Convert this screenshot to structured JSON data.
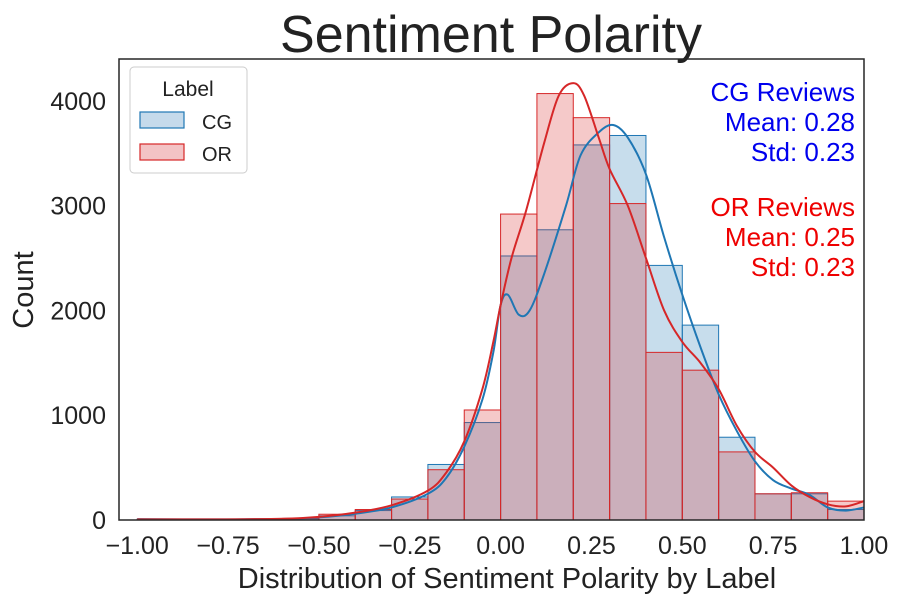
{
  "chart_data": {
    "type": "histogram",
    "title": "Sentiment Polarity",
    "xlabel": "Distribution of Sentiment Polarity by Label",
    "ylabel": "Count",
    "xlim": [
      -1.05,
      1.0
    ],
    "ylim": [
      0,
      4400
    ],
    "x_ticks": [
      -1.0,
      -0.75,
      -0.5,
      -0.25,
      0.0,
      0.25,
      0.5,
      0.75,
      1.0
    ],
    "x_tick_labels": [
      "−1.00",
      "−0.75",
      "−0.50",
      "−0.25",
      "0.00",
      "0.25",
      "0.50",
      "0.75",
      "1.00"
    ],
    "y_ticks": [
      0,
      1000,
      2000,
      3000,
      4000
    ],
    "y_tick_labels": [
      "0",
      "1000",
      "2000",
      "3000",
      "4000"
    ],
    "grid": false,
    "legend": {
      "title": "Label",
      "placement": "top-left",
      "entries": [
        "CG",
        "OR"
      ]
    },
    "bin_edges": [
      -1.0,
      -0.9,
      -0.8,
      -0.7,
      -0.6,
      -0.5,
      -0.4,
      -0.3,
      -0.2,
      -0.1,
      0.0,
      0.1,
      0.2,
      0.3,
      0.4,
      0.5,
      0.6,
      0.7,
      0.8,
      0.9,
      1.0
    ],
    "series": [
      {
        "name": "CG",
        "color": "#1f77b4",
        "fill": "#c5daeb",
        "counts": [
          8,
          4,
          6,
          8,
          12,
          40,
          90,
          220,
          530,
          930,
          2520,
          2770,
          3580,
          3670,
          2430,
          1860,
          790,
          250,
          250,
          100
        ],
        "kde": [
          [
            -1.0,
            8
          ],
          [
            -0.8,
            6
          ],
          [
            -0.6,
            10
          ],
          [
            -0.5,
            25
          ],
          [
            -0.4,
            60
          ],
          [
            -0.3,
            120
          ],
          [
            -0.2,
            250
          ],
          [
            -0.15,
            400
          ],
          [
            -0.1,
            700
          ],
          [
            -0.05,
            1150
          ],
          [
            -0.02,
            1600
          ],
          [
            0.0,
            2050
          ],
          [
            0.02,
            2150
          ],
          [
            0.05,
            1960
          ],
          [
            0.08,
            2000
          ],
          [
            0.12,
            2350
          ],
          [
            0.18,
            3000
          ],
          [
            0.22,
            3480
          ],
          [
            0.27,
            3700
          ],
          [
            0.31,
            3770
          ],
          [
            0.35,
            3650
          ],
          [
            0.4,
            3300
          ],
          [
            0.45,
            2700
          ],
          [
            0.5,
            2150
          ],
          [
            0.55,
            1650
          ],
          [
            0.6,
            1200
          ],
          [
            0.65,
            850
          ],
          [
            0.7,
            560
          ],
          [
            0.75,
            380
          ],
          [
            0.8,
            300
          ],
          [
            0.85,
            240
          ],
          [
            0.9,
            120
          ],
          [
            0.95,
            90
          ],
          [
            1.0,
            120
          ]
        ]
      },
      {
        "name": "OR",
        "color": "#d62728",
        "fill": "#f3c3c5",
        "counts": [
          6,
          3,
          5,
          10,
          15,
          55,
          100,
          200,
          480,
          1050,
          2920,
          4070,
          3840,
          3020,
          1600,
          1430,
          650,
          250,
          260,
          180
        ],
        "kde": [
          [
            -1.0,
            6
          ],
          [
            -0.8,
            6
          ],
          [
            -0.6,
            12
          ],
          [
            -0.5,
            30
          ],
          [
            -0.4,
            70
          ],
          [
            -0.3,
            140
          ],
          [
            -0.2,
            280
          ],
          [
            -0.15,
            450
          ],
          [
            -0.1,
            750
          ],
          [
            -0.05,
            1250
          ],
          [
            -0.02,
            1700
          ],
          [
            0.0,
            2050
          ],
          [
            0.03,
            2500
          ],
          [
            0.07,
            2950
          ],
          [
            0.12,
            3600
          ],
          [
            0.16,
            4050
          ],
          [
            0.2,
            4170
          ],
          [
            0.23,
            4050
          ],
          [
            0.27,
            3650
          ],
          [
            0.3,
            3350
          ],
          [
            0.35,
            3000
          ],
          [
            0.4,
            2500
          ],
          [
            0.45,
            2000
          ],
          [
            0.5,
            1700
          ],
          [
            0.55,
            1500
          ],
          [
            0.6,
            1250
          ],
          [
            0.65,
            900
          ],
          [
            0.7,
            650
          ],
          [
            0.75,
            500
          ],
          [
            0.8,
            330
          ],
          [
            0.85,
            220
          ],
          [
            0.9,
            150
          ],
          [
            0.95,
            130
          ],
          [
            1.0,
            180
          ]
        ]
      }
    ],
    "annotations": [
      {
        "lines": [
          "CG Reviews",
          "Mean: 0.28",
          "Std: 0.23"
        ],
        "color": "#0000ee"
      },
      {
        "lines": [
          "OR Reviews",
          "Mean: 0.25",
          "Std: 0.23"
        ],
        "color": "#ee0000"
      }
    ]
  }
}
